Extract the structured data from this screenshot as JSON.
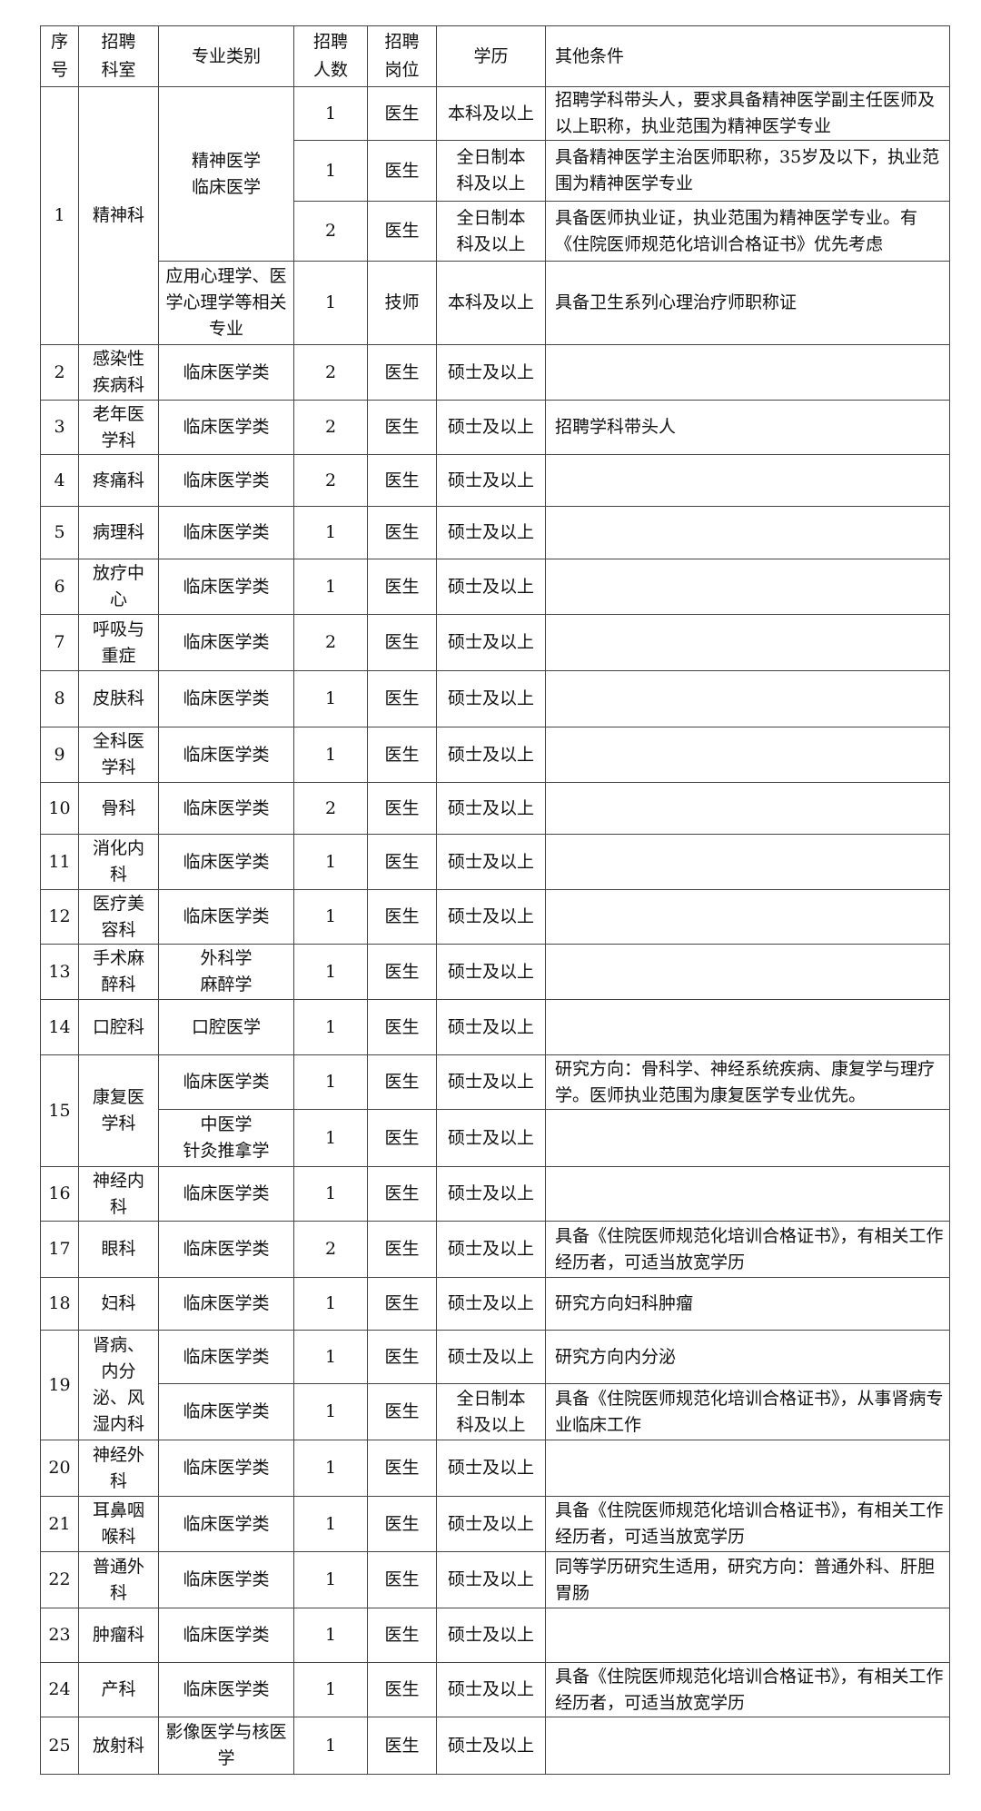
{
  "headers": {
    "no": "序号",
    "dept": "招聘科室",
    "major": "专业类别",
    "count": "招聘人数",
    "post": "招聘岗位",
    "edu": "学历",
    "other": "其他条件"
  },
  "groups": [
    {
      "no": "1",
      "dept": "精神科",
      "majors": [
        {
          "major": "精神医学\n临床医学",
          "positions": [
            {
              "count": "1",
              "post": "医生",
              "edu": "本科及以上",
              "other": "招聘学科带头人，要求具备精神医学副主任医师及以上职称，执业范围为精神医学专业"
            },
            {
              "count": "1",
              "post": "医生",
              "edu": "全日制本科及以上",
              "other": "具备精神医学主治医师职称，35岁及以下，执业范围为精神医学专业"
            },
            {
              "count": "2",
              "post": "医生",
              "edu": "全日制本科及以上",
              "other": "具备医师执业证，执业范围为精神医学专业。有《住院医师规范化培训合格证书》优先考虑"
            }
          ]
        },
        {
          "major": "应用心理学、医学心理学等相关专业",
          "positions": [
            {
              "count": "1",
              "post": "技师",
              "edu": "本科及以上",
              "other": "具备卫生系列心理治疗师职称证"
            }
          ]
        }
      ]
    },
    {
      "no": "2",
      "dept": "感染性疾病科",
      "majors": [
        {
          "major": "临床医学类",
          "positions": [
            {
              "count": "2",
              "post": "医生",
              "edu": "硕士及以上",
              "other": ""
            }
          ]
        }
      ]
    },
    {
      "no": "3",
      "dept": "老年医学科",
      "majors": [
        {
          "major": "临床医学类",
          "positions": [
            {
              "count": "2",
              "post": "医生",
              "edu": "硕士及以上",
              "other": "招聘学科带头人"
            }
          ]
        }
      ]
    },
    {
      "no": "4",
      "dept": "疼痛科",
      "majors": [
        {
          "major": "临床医学类",
          "positions": [
            {
              "count": "2",
              "post": "医生",
              "edu": "硕士及以上",
              "other": ""
            }
          ]
        }
      ]
    },
    {
      "no": "5",
      "dept": "病理科",
      "majors": [
        {
          "major": "临床医学类",
          "positions": [
            {
              "count": "1",
              "post": "医生",
              "edu": "硕士及以上",
              "other": ""
            }
          ]
        }
      ]
    },
    {
      "no": "6",
      "dept": "放疗中心",
      "majors": [
        {
          "major": "临床医学类",
          "positions": [
            {
              "count": "1",
              "post": "医生",
              "edu": "硕士及以上",
              "other": ""
            }
          ]
        }
      ]
    },
    {
      "no": "7",
      "dept": "呼吸与重症",
      "majors": [
        {
          "major": "临床医学类",
          "positions": [
            {
              "count": "2",
              "post": "医生",
              "edu": "硕士及以上",
              "other": ""
            }
          ]
        }
      ]
    },
    {
      "no": "8",
      "dept": "皮肤科",
      "majors": [
        {
          "major": "临床医学类",
          "positions": [
            {
              "count": "1",
              "post": "医生",
              "edu": "硕士及以上",
              "other": ""
            }
          ]
        }
      ]
    },
    {
      "no": "9",
      "dept": "全科医学科",
      "majors": [
        {
          "major": "临床医学类",
          "positions": [
            {
              "count": "1",
              "post": "医生",
              "edu": "硕士及以上",
              "other": ""
            }
          ]
        }
      ]
    },
    {
      "no": "10",
      "dept": "骨科",
      "majors": [
        {
          "major": "临床医学类",
          "positions": [
            {
              "count": "2",
              "post": "医生",
              "edu": "硕士及以上",
              "other": ""
            }
          ]
        }
      ]
    },
    {
      "no": "11",
      "dept": "消化内科",
      "majors": [
        {
          "major": "临床医学类",
          "positions": [
            {
              "count": "1",
              "post": "医生",
              "edu": "硕士及以上",
              "other": ""
            }
          ]
        }
      ]
    },
    {
      "no": "12",
      "dept": "医疗美容科",
      "majors": [
        {
          "major": "临床医学类",
          "positions": [
            {
              "count": "1",
              "post": "医生",
              "edu": "硕士及以上",
              "other": ""
            }
          ]
        }
      ]
    },
    {
      "no": "13",
      "dept": "手术麻醉科",
      "majors": [
        {
          "major": "外科学\n麻醉学",
          "positions": [
            {
              "count": "1",
              "post": "医生",
              "edu": "硕士及以上",
              "other": ""
            }
          ]
        }
      ]
    },
    {
      "no": "14",
      "dept": "口腔科",
      "majors": [
        {
          "major": "口腔医学",
          "positions": [
            {
              "count": "1",
              "post": "医生",
              "edu": "硕士及以上",
              "other": ""
            }
          ]
        }
      ]
    },
    {
      "no": "15",
      "dept": "康复医学科",
      "majors": [
        {
          "major": "临床医学类",
          "positions": [
            {
              "count": "1",
              "post": "医生",
              "edu": "硕士及以上",
              "other": "研究方向：骨科学、神经系统疾病、康复学与理疗学。医师执业范围为康复医学专业优先。"
            }
          ]
        },
        {
          "major": "中医学\n针灸推拿学",
          "positions": [
            {
              "count": "1",
              "post": "医生",
              "edu": "硕士及以上",
              "other": ""
            }
          ]
        }
      ]
    },
    {
      "no": "16",
      "dept": "神经内科",
      "majors": [
        {
          "major": "临床医学类",
          "positions": [
            {
              "count": "1",
              "post": "医生",
              "edu": "硕士及以上",
              "other": ""
            }
          ]
        }
      ]
    },
    {
      "no": "17",
      "dept": "眼科",
      "majors": [
        {
          "major": "临床医学类",
          "positions": [
            {
              "count": "2",
              "post": "医生",
              "edu": "硕士及以上",
              "other": "具备《住院医师规范化培训合格证书》，有相关工作经历者，可适当放宽学历"
            }
          ]
        }
      ]
    },
    {
      "no": "18",
      "dept": "妇科",
      "majors": [
        {
          "major": "临床医学类",
          "positions": [
            {
              "count": "1",
              "post": "医生",
              "edu": "硕士及以上",
              "other": "研究方向妇科肿瘤"
            }
          ]
        }
      ]
    },
    {
      "no": "19",
      "dept": "肾病、内分泌、风湿内科",
      "majors": [
        {
          "major": "临床医学类",
          "positions": [
            {
              "count": "1",
              "post": "医生",
              "edu": "硕士及以上",
              "other": "研究方向内分泌"
            }
          ]
        },
        {
          "major": "临床医学类",
          "positions": [
            {
              "count": "1",
              "post": "医生",
              "edu": "全日制本科及以上",
              "other": "具备《住院医师规范化培训合格证书》，从事肾病专业临床工作"
            }
          ]
        }
      ]
    },
    {
      "no": "20",
      "dept": "神经外科",
      "majors": [
        {
          "major": "临床医学类",
          "positions": [
            {
              "count": "1",
              "post": "医生",
              "edu": "硕士及以上",
              "other": ""
            }
          ]
        }
      ]
    },
    {
      "no": "21",
      "dept": "耳鼻咽喉科",
      "majors": [
        {
          "major": "临床医学类",
          "positions": [
            {
              "count": "1",
              "post": "医生",
              "edu": "硕士及以上",
              "other": "具备《住院医师规范化培训合格证书》，有相关工作经历者，可适当放宽学历"
            }
          ]
        }
      ]
    },
    {
      "no": "22",
      "dept": "普通外科",
      "majors": [
        {
          "major": "临床医学类",
          "positions": [
            {
              "count": "1",
              "post": "医生",
              "edu": "硕士及以上",
              "other": "同等学历研究生适用，研究方向：普通外科、肝胆胃肠"
            }
          ]
        }
      ]
    },
    {
      "no": "23",
      "dept": "肿瘤科",
      "majors": [
        {
          "major": "临床医学类",
          "positions": [
            {
              "count": "1",
              "post": "医生",
              "edu": "硕士及以上",
              "other": ""
            }
          ]
        }
      ]
    },
    {
      "no": "24",
      "dept": "产科",
      "majors": [
        {
          "major": "临床医学类",
          "positions": [
            {
              "count": "1",
              "post": "医生",
              "edu": "硕士及以上",
              "other": "具备《住院医师规范化培训合格证书》，有相关工作经历者，可适当放宽学历"
            }
          ]
        }
      ]
    },
    {
      "no": "25",
      "dept": "放射科",
      "majors": [
        {
          "major": "影像医学与核医学",
          "positions": [
            {
              "count": "1",
              "post": "医生",
              "edu": "硕士及以上",
              "other": ""
            }
          ]
        }
      ]
    }
  ]
}
